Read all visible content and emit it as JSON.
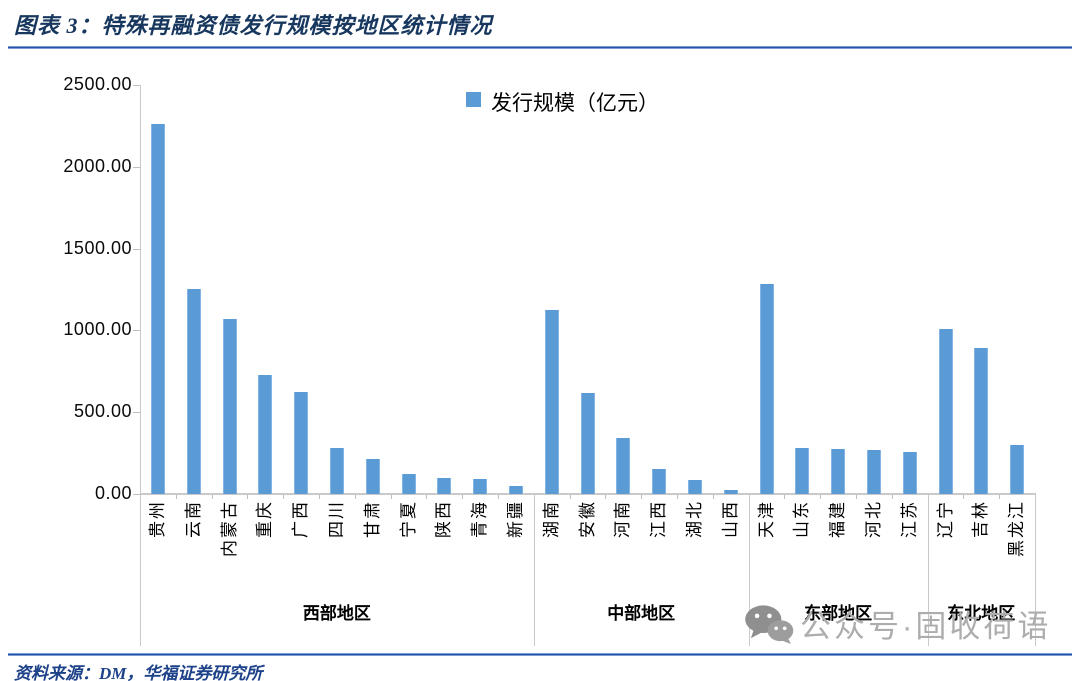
{
  "header": {
    "title": "图表 3：特殊再融资债发行规模按地区统计情况"
  },
  "legend": {
    "label": "发行规模（亿元）"
  },
  "footer": {
    "source": "资料来源：DM，华福证券研究所"
  },
  "watermark": {
    "icon": "wechat-icon",
    "text": "公众号·固收荷语"
  },
  "colors": {
    "bar": "#5B9BD5",
    "title_navy": "#17375E",
    "rule_blue": "#2452A4",
    "axis_gray": "#C9C9C9",
    "watermark_gray": "#ADADAD"
  },
  "chart_data": {
    "type": "bar",
    "title": "特殊再融资债发行规模按地区统计情况",
    "legend_entries": [
      "发行规模（亿元）"
    ],
    "xlabel": "",
    "ylabel": "",
    "ylim": [
      0,
      2500
    ],
    "yticks": [
      0,
      500,
      1000,
      1500,
      2000,
      2500
    ],
    "ytick_decimals": 2,
    "grid": false,
    "legend_position": "top-center",
    "category_label_rotation": 90,
    "groups": [
      {
        "label": "西部地区",
        "categories": [
          "贵州",
          "云南",
          "内蒙古",
          "重庆",
          "广西",
          "四川",
          "甘肃",
          "宁夏",
          "陕西",
          "青海",
          "新疆"
        ],
        "values": [
          2264,
          1256,
          1067,
          726,
          623,
          280,
          215,
          120,
          95,
          90,
          50
        ]
      },
      {
        "label": "中部地区",
        "categories": [
          "湖南",
          "安徽",
          "河南",
          "江西",
          "湖北",
          "山西"
        ],
        "values": [
          1122,
          616,
          340,
          150,
          88,
          25
        ]
      },
      {
        "label": "东部地区",
        "categories": [
          "天津",
          "山东",
          "福建",
          "河北",
          "江苏"
        ],
        "values": [
          1286,
          281,
          277,
          270,
          256
        ]
      },
      {
        "label": "东北地区",
        "categories": [
          "辽宁",
          "吉林",
          "黑龙江"
        ],
        "values": [
          1006,
          892,
          300
        ]
      }
    ]
  }
}
